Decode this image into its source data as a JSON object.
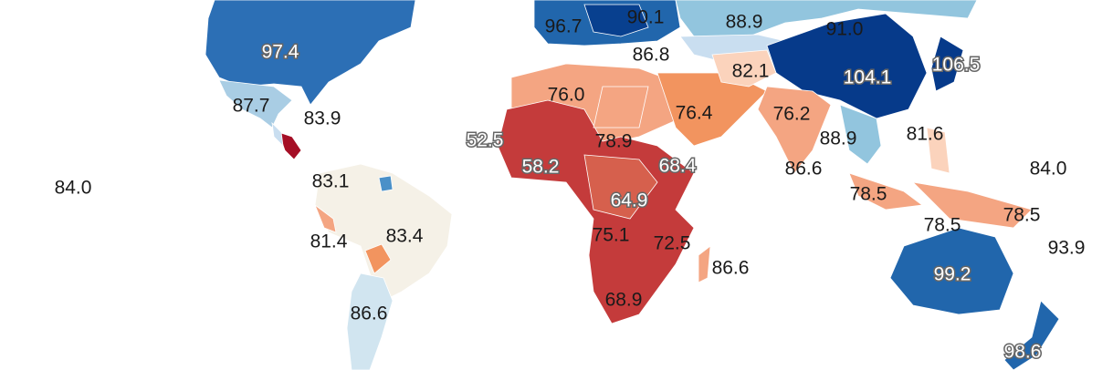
{
  "labels": [
    "97.4",
    "96.7",
    "90.1",
    "88.9",
    "91.0",
    "106.5",
    "104.1",
    "86.8",
    "82.1",
    "87.7",
    "83.9",
    "76.0",
    "76.4",
    "76.2",
    "52.5",
    "88.9",
    "81.6",
    "78.9",
    "58.2",
    "68.4",
    "86.6",
    "84.0",
    "84.0",
    "83.1",
    "64.9",
    "78.5",
    "78.5",
    "78.5",
    "81.4",
    "83.4",
    "75.1",
    "72.5",
    "93.9",
    "86.6",
    "99.2",
    "68.9",
    "86.6",
    "98.6"
  ]
}
